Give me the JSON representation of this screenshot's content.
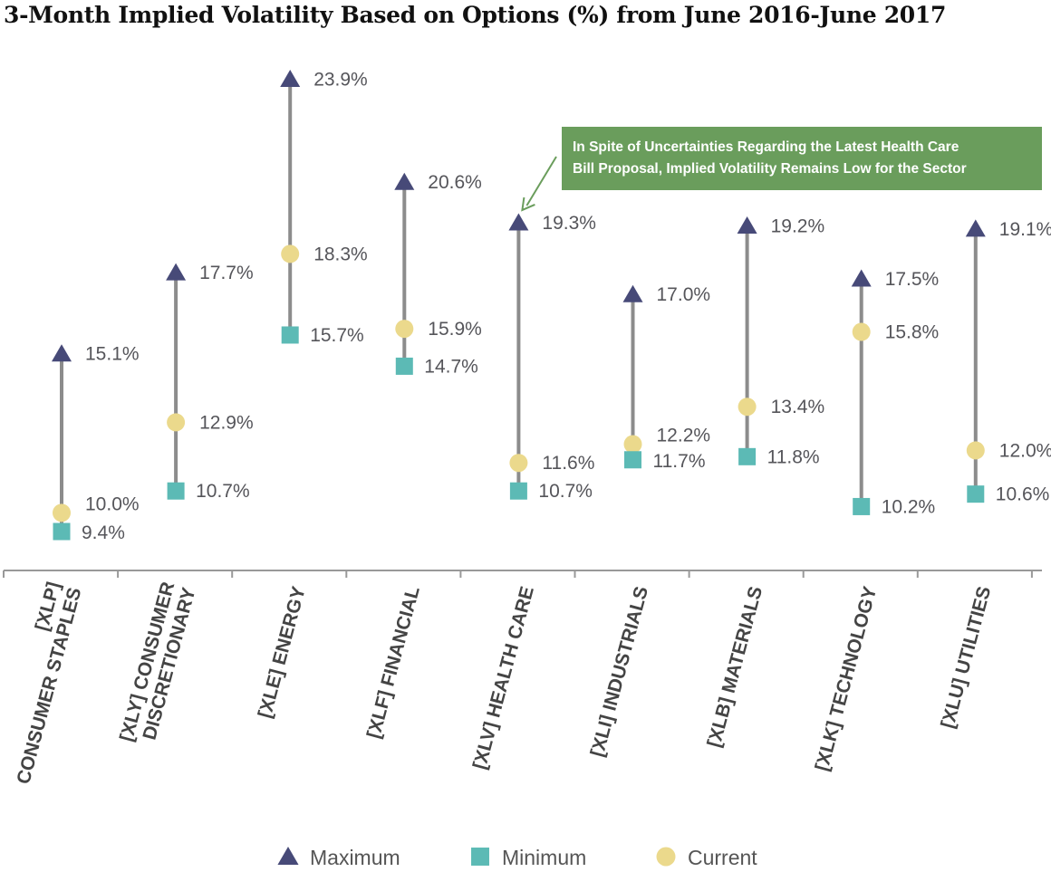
{
  "chart_data": {
    "type": "scatter",
    "title": "3-Month Implied Volatility Based on Options (%) from June 2016-June 2017",
    "categories": [
      [
        "[XLP]",
        "CONSUMER STAPLES"
      ],
      [
        "[XLY] CONSUMER",
        "DISCRETIONARY"
      ],
      [
        "[XLE] ENERGY"
      ],
      [
        "[XLF] FINANCIAL"
      ],
      [
        "[XLV] HEALTH CARE"
      ],
      [
        "[XLI] INDUSTRIALS"
      ],
      [
        "[XLB] MATERIALS"
      ],
      [
        "[XLK] TECHNOLOGY"
      ],
      [
        "[XLU] UTILITIES"
      ]
    ],
    "series": [
      {
        "name": "Maximum",
        "marker": "triangle",
        "color": "#474a78",
        "values": [
          15.1,
          17.7,
          23.9,
          20.6,
          19.3,
          17.0,
          19.2,
          17.5,
          19.1
        ],
        "labels": [
          "15.1%",
          "17.7%",
          "23.9%",
          "20.6%",
          "19.3%",
          "17.0%",
          "19.2%",
          "17.5%",
          "19.1%"
        ]
      },
      {
        "name": "Minimum",
        "marker": "square",
        "color": "#5cbab5",
        "values": [
          9.4,
          10.7,
          15.7,
          14.7,
          10.7,
          11.7,
          11.8,
          10.2,
          10.6
        ],
        "labels": [
          "9.4%",
          "10.7%",
          "15.7%",
          "14.7%",
          "10.7%",
          "11.7%",
          "11.8%",
          "10.2%",
          "10.6%"
        ]
      },
      {
        "name": "Current",
        "marker": "circle",
        "color": "#ebd98c",
        "values": [
          10.0,
          12.9,
          18.3,
          15.9,
          11.6,
          12.2,
          13.4,
          15.8,
          12.0
        ],
        "labels": [
          "10.0%",
          "12.9%",
          "18.3%",
          "15.9%",
          "11.6%",
          "12.2%",
          "13.4%",
          "15.8%",
          "12.0%"
        ]
      }
    ],
    "range_line_color": "#8c8c8c",
    "legend": {
      "position": "bottom"
    },
    "annotation": {
      "lines": [
        "In Spite of Uncertainties Regarding the Latest Health Care",
        "Bill Proposal, Implied Volatility Remains Low for the Sector"
      ],
      "target_category": "[XLV] HEALTH CARE",
      "color": "#6a9d5c"
    }
  }
}
